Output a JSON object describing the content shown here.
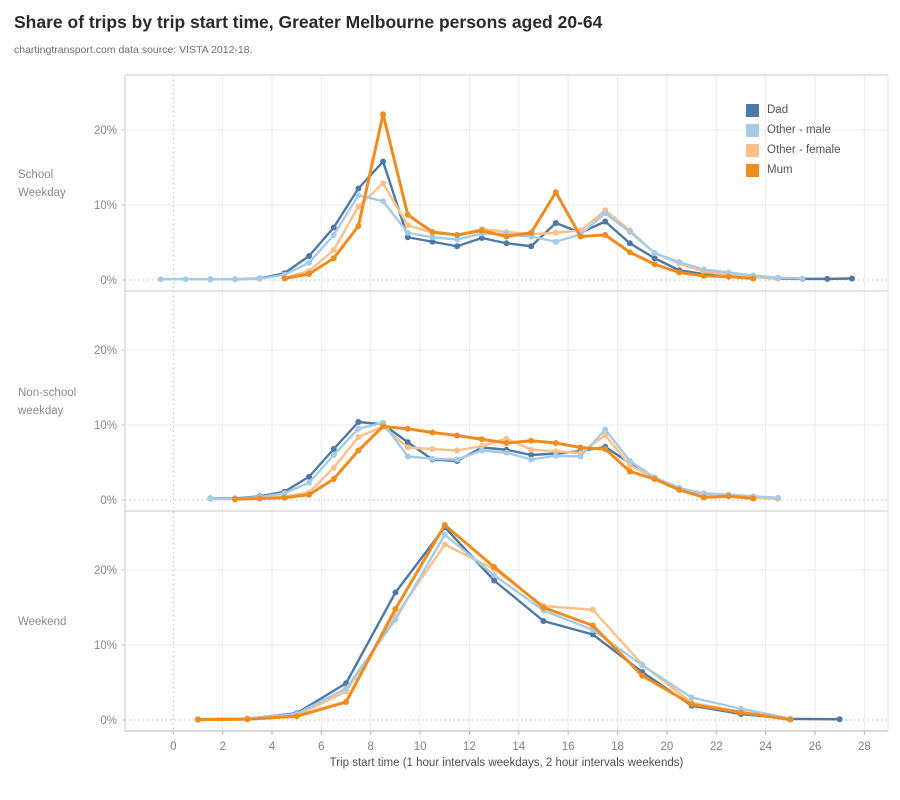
{
  "header": {
    "title": "Share of trips by trip start time, Greater Melbourne persons aged 20-64",
    "subtitle": "chartingtransport.com  data source: VISTA 2012-18."
  },
  "legend": {
    "items": [
      {
        "label": "Dad",
        "color": "#4d79a6"
      },
      {
        "label": "Other - male",
        "color": "#a6cbe8"
      },
      {
        "label": "Other - female",
        "color": "#fac08a"
      },
      {
        "label": "Mum",
        "color": "#ef8c1e"
      }
    ]
  },
  "x_axis": {
    "title": "Trip start time (1 hour intervals weekdays, 2 hour intervals weekends)",
    "ticks": [
      0,
      2,
      4,
      6,
      8,
      10,
      12,
      14,
      16,
      18,
      20,
      22,
      24,
      26,
      28
    ],
    "range": [
      -2,
      29
    ]
  },
  "y_axis": {
    "tick_labels": [
      "0%",
      "10%",
      "20%"
    ],
    "tick_values": [
      0,
      10,
      20
    ],
    "unit": "%"
  },
  "chart_data": [
    {
      "type": "line",
      "panel": "School Weekday",
      "panel_label_lines": [
        "School",
        "Weekday"
      ],
      "ylim": [
        0,
        27
      ],
      "series": [
        {
          "name": "Dad",
          "color": "#4d79a6",
          "x": [
            1.5,
            2.5,
            3.5,
            4.5,
            5.5,
            6.5,
            7.5,
            8.5,
            9.5,
            10.5,
            11.5,
            12.5,
            13.5,
            14.5,
            15.5,
            16.5,
            17.5,
            18.5,
            19.5,
            20.5,
            21.5,
            22.5,
            23.5,
            24.5,
            25.5,
            26.5,
            27.5
          ],
          "y": [
            0.1,
            0.1,
            0.2,
            0.9,
            3.2,
            7.0,
            12.2,
            15.8,
            5.7,
            5.1,
            4.5,
            5.6,
            4.9,
            4.5,
            7.6,
            6.3,
            7.8,
            4.9,
            2.9,
            1.3,
            0.8,
            0.65,
            0.4,
            0.2,
            0.15,
            0.15,
            0.2
          ]
        },
        {
          "name": "Other - male",
          "color": "#a6cbe8",
          "x": [
            -0.5,
            0.5,
            1.5,
            2.5,
            3.5,
            4.5,
            5.5,
            6.5,
            7.5,
            8.5,
            9.5,
            10.5,
            11.5,
            12.5,
            13.5,
            14.5,
            15.5,
            16.5,
            17.5,
            18.5,
            19.5,
            20.5,
            21.5,
            22.5,
            23.5,
            24.5,
            25.5
          ],
          "y": [
            0.1,
            0.1,
            0.1,
            0.1,
            0.15,
            0.7,
            2.3,
            6.0,
            11.3,
            10.5,
            6.3,
            5.7,
            5.4,
            6.2,
            6.1,
            5.8,
            5.1,
            6.1,
            8.9,
            6.4,
            3.6,
            2.4,
            1.4,
            1.0,
            0.6,
            0.3,
            0.2
          ]
        },
        {
          "name": "Other - female",
          "color": "#fac08a",
          "x": [
            4.5,
            5.5,
            6.5,
            7.5,
            8.5,
            9.5,
            10.5,
            11.5,
            12.5,
            13.5,
            14.5,
            15.5,
            16.5,
            17.5,
            18.5,
            19.5,
            20.5,
            21.5,
            22.5,
            23.5,
            24.5
          ],
          "y": [
            0.3,
            1.2,
            4.0,
            9.8,
            12.9,
            7.3,
            6.3,
            6.0,
            6.8,
            6.4,
            6.1,
            6.3,
            6.6,
            9.3,
            6.6,
            3.6,
            2.2,
            1.1,
            0.7,
            0.4,
            0.2
          ]
        },
        {
          "name": "Mum",
          "color": "#ef8c1e",
          "x": [
            4.5,
            5.5,
            6.5,
            7.5,
            8.5,
            9.5,
            10.5,
            11.5,
            12.5,
            13.5,
            14.5,
            15.5,
            16.5,
            17.5,
            18.5,
            19.5,
            20.5,
            21.5,
            22.5,
            23.5
          ],
          "y": [
            0.2,
            0.8,
            2.9,
            7.2,
            22.1,
            8.7,
            6.4,
            6.0,
            6.6,
            5.8,
            6.3,
            11.7,
            5.8,
            6.0,
            3.7,
            2.1,
            1.0,
            0.55,
            0.45,
            0.2
          ]
        }
      ]
    },
    {
      "type": "line",
      "panel": "Non-school weekday",
      "panel_label_lines": [
        "Non-school",
        "weekday"
      ],
      "ylim": [
        0,
        27
      ],
      "series": [
        {
          "name": "Dad",
          "color": "#4d79a6",
          "x": [
            1.5,
            2.5,
            3.5,
            4.5,
            5.5,
            6.5,
            7.5,
            8.5,
            9.5,
            10.5,
            11.5,
            12.5,
            13.5,
            14.5,
            15.5,
            16.5,
            17.5,
            18.5,
            19.5,
            20.5,
            21.5,
            22.5,
            23.5,
            24.5
          ],
          "y": [
            0.2,
            0.2,
            0.5,
            1.1,
            3.1,
            6.8,
            10.4,
            10.1,
            7.7,
            5.4,
            5.2,
            7.0,
            6.7,
            6.0,
            6.2,
            6.5,
            7.1,
            4.9,
            3.0,
            1.5,
            0.8,
            0.65,
            0.4,
            0.2
          ]
        },
        {
          "name": "Other - male",
          "color": "#a6cbe8",
          "x": [
            1.5,
            2.5,
            3.5,
            4.5,
            5.5,
            6.5,
            7.5,
            8.5,
            9.5,
            10.5,
            11.5,
            12.5,
            13.5,
            14.5,
            15.5,
            16.5,
            17.5,
            18.5,
            19.5,
            20.5,
            21.5,
            22.5,
            23.5,
            24.5
          ],
          "y": [
            0.15,
            0.15,
            0.4,
            0.9,
            2.3,
            6.0,
            9.5,
            10.3,
            5.8,
            5.5,
            5.4,
            6.6,
            6.3,
            5.4,
            5.9,
            5.8,
            9.4,
            5.2,
            3.0,
            1.6,
            0.9,
            0.7,
            0.5,
            0.3
          ]
        },
        {
          "name": "Other - female",
          "color": "#fac08a",
          "x": [
            2.5,
            3.5,
            4.5,
            5.5,
            6.5,
            7.5,
            8.5,
            9.5,
            10.5,
            11.5,
            12.5,
            13.5,
            14.5,
            15.5,
            16.5,
            17.5,
            18.5,
            19.5,
            20.5,
            21.5,
            22.5,
            23.5,
            24.5
          ],
          "y": [
            0.1,
            0.3,
            0.5,
            1.0,
            4.3,
            8.4,
            9.8,
            7.0,
            6.8,
            6.6,
            7.2,
            8.2,
            6.7,
            6.5,
            6.25,
            8.65,
            4.6,
            3.0,
            1.6,
            0.8,
            0.55,
            0.3,
            0.15
          ]
        },
        {
          "name": "Mum",
          "color": "#ef8c1e",
          "x": [
            2.5,
            3.5,
            4.5,
            5.5,
            6.5,
            7.5,
            8.5,
            9.5,
            10.5,
            11.5,
            12.5,
            13.5,
            14.5,
            15.5,
            16.5,
            17.5,
            18.5,
            19.5,
            20.5,
            21.5,
            22.5,
            23.5
          ],
          "y": [
            0.1,
            0.2,
            0.3,
            0.7,
            2.8,
            6.6,
            9.8,
            9.5,
            9.0,
            8.6,
            8.1,
            7.6,
            7.9,
            7.6,
            7.0,
            6.8,
            3.8,
            2.8,
            1.35,
            0.35,
            0.5,
            0.2
          ]
        }
      ]
    },
    {
      "type": "line",
      "panel": "Weekend",
      "panel_label_lines": [
        "Weekend"
      ],
      "ylim": [
        0,
        27
      ],
      "series": [
        {
          "name": "Dad",
          "color": "#4d79a6",
          "x": [
            1,
            3,
            5,
            7,
            9,
            11,
            13,
            15,
            17,
            19,
            21,
            23,
            25,
            27
          ],
          "y": [
            0.1,
            0.15,
            0.9,
            4.9,
            17.0,
            25.7,
            18.6,
            13.2,
            11.4,
            6.4,
            1.9,
            0.8,
            0.15,
            0.1
          ]
        },
        {
          "name": "Other - male",
          "color": "#a6cbe8",
          "x": [
            1,
            3,
            5,
            7,
            9,
            11,
            13,
            15,
            17,
            19,
            21,
            23,
            25
          ],
          "y": [
            0.1,
            0.2,
            0.8,
            4.2,
            13.4,
            24.7,
            19.3,
            14.6,
            12.0,
            7.3,
            3.0,
            1.5,
            0.2
          ]
        },
        {
          "name": "Other - female",
          "color": "#fac08a",
          "x": [
            1,
            3,
            5,
            7,
            9,
            11,
            13,
            15,
            17,
            19,
            21,
            23,
            25
          ],
          "y": [
            0.05,
            0.1,
            0.6,
            3.8,
            13.8,
            23.4,
            20.1,
            15.2,
            14.7,
            7.4,
            2.3,
            1.1,
            0.1
          ]
        },
        {
          "name": "Mum",
          "color": "#ef8c1e",
          "x": [
            1,
            3,
            5,
            7,
            9,
            11,
            13,
            15,
            17,
            19,
            21,
            23,
            25
          ],
          "y": [
            0.05,
            0.1,
            0.5,
            2.4,
            14.8,
            26.0,
            20.4,
            15.0,
            12.6,
            5.9,
            2.1,
            1.0,
            0.05
          ]
        }
      ]
    }
  ]
}
